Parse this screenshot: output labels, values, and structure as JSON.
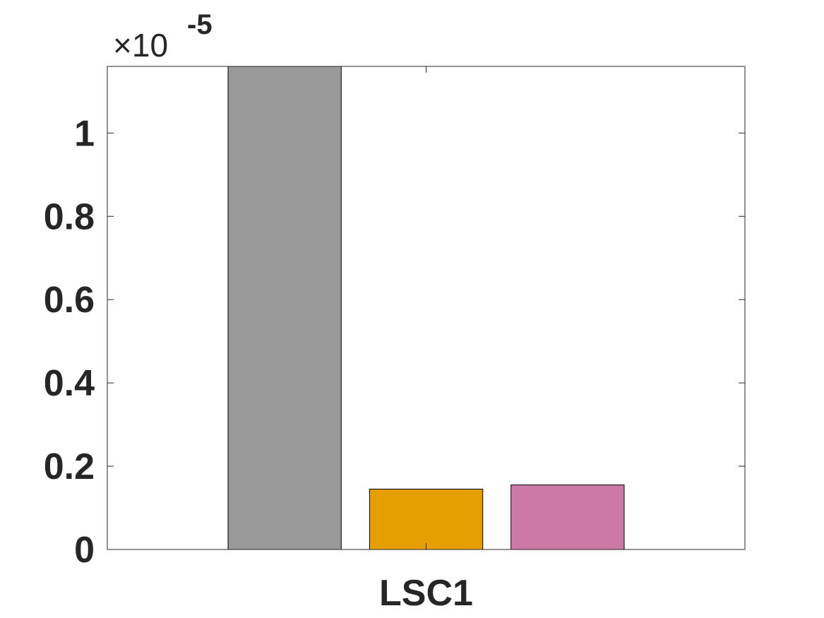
{
  "chart_data": {
    "type": "bar",
    "categories": [
      "LSC1"
    ],
    "series": [
      {
        "values": [
          1.16e-05
        ],
        "color": "#999999"
      },
      {
        "values": [
          1.45e-06
        ],
        "color": "#E69F00"
      },
      {
        "values": [
          1.55e-06
        ],
        "color": "#CC79A7"
      }
    ],
    "title": "",
    "xlabel": "",
    "ylabel": "",
    "ylim": [
      0,
      1.16e-05
    ],
    "yticks": [
      0,
      0.2,
      0.4,
      0.6,
      0.8,
      1
    ],
    "ytick_labels": [
      "0",
      "0.2",
      "0.4",
      "0.6",
      "0.8",
      "1"
    ],
    "exponent_label": {
      "base": "×10",
      "power": "-5"
    },
    "grid": false,
    "legend": false,
    "box": true
  }
}
